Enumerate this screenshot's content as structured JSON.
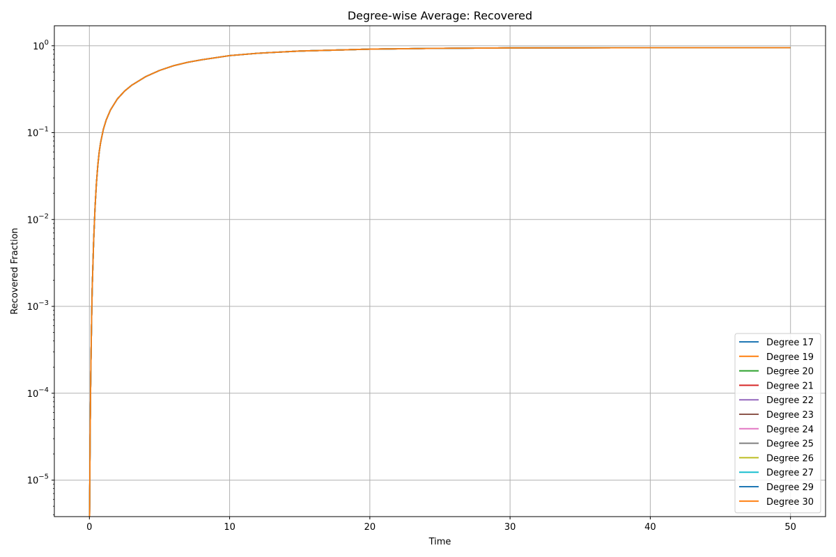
{
  "chart_data": {
    "type": "line",
    "title": "Degree-wise Average: Recovered",
    "xlabel": "Time",
    "ylabel": "Recovered Fraction",
    "y_scale": "log",
    "xlim": [
      -2.5,
      52.5
    ],
    "ylim": [
      3.8e-06,
      1.7
    ],
    "grid": true,
    "legend_position": "lower right",
    "x_ticks": [
      0,
      10,
      20,
      30,
      40,
      50
    ],
    "x_tick_labels": [
      "0",
      "10",
      "20",
      "30",
      "40",
      "50"
    ],
    "y_ticks": [
      1e-05,
      0.0001,
      0.001,
      0.01,
      0.1,
      1
    ],
    "y_tick_labels": [
      {
        "base": "10",
        "exp": "−5"
      },
      {
        "base": "10",
        "exp": "−4"
      },
      {
        "base": "10",
        "exp": "−3"
      },
      {
        "base": "10",
        "exp": "−2"
      },
      {
        "base": "10",
        "exp": "−1"
      },
      {
        "base": "10",
        "exp": "0"
      }
    ],
    "x": [
      0,
      0.05,
      0.1,
      0.15,
      0.2,
      0.3,
      0.4,
      0.5,
      0.6,
      0.7,
      0.8,
      1.0,
      1.2,
      1.5,
      2,
      2.5,
      3,
      4,
      5,
      6,
      7,
      8,
      10,
      12,
      15,
      20,
      25,
      30,
      40,
      50
    ],
    "series": [
      {
        "name": "Degree 17",
        "color": "#1f77b4",
        "values": [
          1e-07,
          3e-05,
          0.00017,
          0.0006,
          0.0016,
          0.0055,
          0.0135,
          0.026,
          0.042,
          0.06,
          0.077,
          0.11,
          0.14,
          0.182,
          0.245,
          0.3,
          0.35,
          0.44,
          0.52,
          0.59,
          0.645,
          0.69,
          0.77,
          0.82,
          0.87,
          0.915,
          0.935,
          0.945,
          0.95,
          0.95
        ]
      },
      {
        "name": "Degree 19",
        "color": "#ff7f0e",
        "values": [
          1e-07,
          3e-05,
          0.00017,
          0.0006,
          0.0016,
          0.0055,
          0.0135,
          0.026,
          0.042,
          0.06,
          0.077,
          0.11,
          0.14,
          0.182,
          0.245,
          0.3,
          0.35,
          0.44,
          0.52,
          0.59,
          0.645,
          0.69,
          0.77,
          0.82,
          0.87,
          0.915,
          0.935,
          0.945,
          0.95,
          0.95
        ]
      },
      {
        "name": "Degree 20",
        "color": "#2ca02c",
        "values": [
          1e-07,
          3e-05,
          0.00017,
          0.0006,
          0.0016,
          0.0055,
          0.0135,
          0.026,
          0.042,
          0.06,
          0.077,
          0.11,
          0.14,
          0.182,
          0.245,
          0.3,
          0.35,
          0.44,
          0.52,
          0.59,
          0.645,
          0.69,
          0.77,
          0.82,
          0.87,
          0.915,
          0.935,
          0.945,
          0.95,
          0.95
        ]
      },
      {
        "name": "Degree 21",
        "color": "#d62728",
        "values": [
          1e-07,
          3e-05,
          0.00017,
          0.0006,
          0.0016,
          0.0055,
          0.0135,
          0.026,
          0.042,
          0.06,
          0.077,
          0.11,
          0.14,
          0.182,
          0.245,
          0.3,
          0.35,
          0.44,
          0.52,
          0.59,
          0.645,
          0.69,
          0.77,
          0.82,
          0.87,
          0.915,
          0.935,
          0.945,
          0.95,
          0.95
        ]
      },
      {
        "name": "Degree 22",
        "color": "#9467bd",
        "values": [
          1e-07,
          3e-05,
          0.00017,
          0.0006,
          0.0016,
          0.0055,
          0.0135,
          0.026,
          0.042,
          0.06,
          0.077,
          0.11,
          0.14,
          0.182,
          0.245,
          0.3,
          0.35,
          0.44,
          0.52,
          0.59,
          0.645,
          0.69,
          0.77,
          0.82,
          0.87,
          0.915,
          0.935,
          0.945,
          0.95,
          0.95
        ]
      },
      {
        "name": "Degree 23",
        "color": "#8c564b",
        "values": [
          1e-07,
          3e-05,
          0.00017,
          0.0006,
          0.0016,
          0.0055,
          0.0135,
          0.026,
          0.042,
          0.06,
          0.077,
          0.11,
          0.14,
          0.182,
          0.245,
          0.3,
          0.35,
          0.44,
          0.52,
          0.59,
          0.645,
          0.69,
          0.77,
          0.82,
          0.87,
          0.915,
          0.935,
          0.945,
          0.95,
          0.95
        ]
      },
      {
        "name": "Degree 24",
        "color": "#e377c2",
        "values": [
          1e-07,
          3e-05,
          0.00017,
          0.0006,
          0.0016,
          0.0055,
          0.0135,
          0.026,
          0.042,
          0.06,
          0.077,
          0.11,
          0.14,
          0.182,
          0.245,
          0.3,
          0.35,
          0.44,
          0.52,
          0.59,
          0.645,
          0.69,
          0.77,
          0.82,
          0.87,
          0.915,
          0.935,
          0.945,
          0.95,
          0.95
        ]
      },
      {
        "name": "Degree 25",
        "color": "#7f7f7f",
        "values": [
          1e-07,
          3e-05,
          0.00017,
          0.0006,
          0.0016,
          0.0055,
          0.0135,
          0.026,
          0.042,
          0.06,
          0.077,
          0.11,
          0.14,
          0.182,
          0.245,
          0.3,
          0.35,
          0.44,
          0.52,
          0.59,
          0.645,
          0.69,
          0.77,
          0.82,
          0.87,
          0.915,
          0.935,
          0.945,
          0.95,
          0.95
        ]
      },
      {
        "name": "Degree 26",
        "color": "#bcbd22",
        "values": [
          1e-07,
          3e-05,
          0.00017,
          0.0006,
          0.0016,
          0.0055,
          0.0135,
          0.026,
          0.042,
          0.06,
          0.077,
          0.11,
          0.14,
          0.182,
          0.245,
          0.3,
          0.35,
          0.44,
          0.52,
          0.59,
          0.645,
          0.69,
          0.77,
          0.82,
          0.87,
          0.915,
          0.935,
          0.945,
          0.95,
          0.95
        ]
      },
      {
        "name": "Degree 27",
        "color": "#17becf",
        "values": [
          1e-07,
          3e-05,
          0.00017,
          0.0006,
          0.0016,
          0.0055,
          0.0135,
          0.026,
          0.042,
          0.06,
          0.077,
          0.11,
          0.14,
          0.182,
          0.245,
          0.3,
          0.35,
          0.44,
          0.52,
          0.59,
          0.645,
          0.69,
          0.77,
          0.82,
          0.87,
          0.915,
          0.935,
          0.945,
          0.95,
          0.95
        ]
      },
      {
        "name": "Degree 29",
        "color": "#1f77b4",
        "values": [
          1e-07,
          3e-05,
          0.00017,
          0.0006,
          0.0016,
          0.0055,
          0.0135,
          0.026,
          0.042,
          0.06,
          0.077,
          0.11,
          0.14,
          0.182,
          0.245,
          0.3,
          0.35,
          0.44,
          0.52,
          0.59,
          0.645,
          0.69,
          0.77,
          0.82,
          0.87,
          0.915,
          0.935,
          0.945,
          0.95,
          0.95
        ]
      },
      {
        "name": "Degree 30",
        "color": "#ff7f0e",
        "values": [
          1e-07,
          3e-05,
          0.00017,
          0.0006,
          0.0016,
          0.0055,
          0.0135,
          0.026,
          0.042,
          0.06,
          0.077,
          0.11,
          0.14,
          0.182,
          0.245,
          0.3,
          0.35,
          0.44,
          0.52,
          0.59,
          0.645,
          0.69,
          0.77,
          0.82,
          0.87,
          0.915,
          0.935,
          0.945,
          0.95,
          0.95
        ]
      }
    ]
  }
}
